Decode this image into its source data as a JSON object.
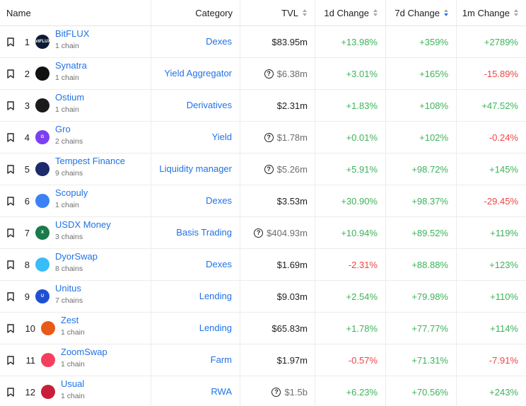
{
  "columns": {
    "name": "Name",
    "category": "Category",
    "tvl": "TVL",
    "change_1d": "1d Change",
    "change_7d": "7d Change",
    "change_1m": "1m Change"
  },
  "rows": [
    {
      "rank": "1",
      "name": "BitFLUX",
      "chains": "1 chain",
      "logo_text": "bitFLUX",
      "logo_color": "#0b1a33",
      "category": "Dexes",
      "tvl": "$83.95m",
      "tvl_help": false,
      "d1": "+13.98%",
      "d7": "+359%",
      "m1": "+2789%",
      "d1_dir": "pos",
      "d7_dir": "pos",
      "m1_dir": "pos"
    },
    {
      "rank": "2",
      "name": "Synatra",
      "chains": "1 chain",
      "logo_text": "",
      "logo_color": "#111111",
      "category": "Yield Aggregator",
      "tvl": "$6.38m",
      "tvl_help": true,
      "d1": "+3.01%",
      "d7": "+165%",
      "m1": "-15.89%",
      "d1_dir": "pos",
      "d7_dir": "pos",
      "m1_dir": "neg"
    },
    {
      "rank": "3",
      "name": "Ostium",
      "chains": "1 chain",
      "logo_text": "",
      "logo_color": "#1b1b1b",
      "category": "Derivatives",
      "tvl": "$2.31m",
      "tvl_help": false,
      "d1": "+1.83%",
      "d7": "+108%",
      "m1": "+47.52%",
      "d1_dir": "pos",
      "d7_dir": "pos",
      "m1_dir": "pos"
    },
    {
      "rank": "4",
      "name": "Gro",
      "chains": "2 chains",
      "logo_text": "G",
      "logo_color": "#7b3ff2",
      "category": "Yield",
      "tvl": "$1.78m",
      "tvl_help": true,
      "d1": "+0.01%",
      "d7": "+102%",
      "m1": "-0.24%",
      "d1_dir": "pos",
      "d7_dir": "pos",
      "m1_dir": "neg"
    },
    {
      "rank": "5",
      "name": "Tempest Finance",
      "chains": "9 chains",
      "logo_text": "",
      "logo_color": "#1d2a6b",
      "category": "Liquidity manager",
      "tvl": "$5.26m",
      "tvl_help": true,
      "d1": "+5.91%",
      "d7": "+98.72%",
      "m1": "+145%",
      "d1_dir": "pos",
      "d7_dir": "pos",
      "m1_dir": "pos"
    },
    {
      "rank": "6",
      "name": "Scopuly",
      "chains": "1 chain",
      "logo_text": "",
      "logo_color": "#3b82f6",
      "category": "Dexes",
      "tvl": "$3.53m",
      "tvl_help": false,
      "d1": "+30.90%",
      "d7": "+98.37%",
      "m1": "-29.45%",
      "d1_dir": "pos",
      "d7_dir": "pos",
      "m1_dir": "neg"
    },
    {
      "rank": "7",
      "name": "USDX Money",
      "chains": "3 chains",
      "logo_text": "X",
      "logo_color": "#1a7a4a",
      "category": "Basis Trading",
      "tvl": "$404.93m",
      "tvl_help": true,
      "d1": "+10.94%",
      "d7": "+89.52%",
      "m1": "+119%",
      "d1_dir": "pos",
      "d7_dir": "pos",
      "m1_dir": "pos"
    },
    {
      "rank": "8",
      "name": "DyorSwap",
      "chains": "8 chains",
      "logo_text": "",
      "logo_color": "#38bdf8",
      "category": "Dexes",
      "tvl": "$1.69m",
      "tvl_help": false,
      "d1": "-2.31%",
      "d7": "+88.88%",
      "m1": "+123%",
      "d1_dir": "neg",
      "d7_dir": "pos",
      "m1_dir": "pos"
    },
    {
      "rank": "9",
      "name": "Unitus",
      "chains": "7 chains",
      "logo_text": "U",
      "logo_color": "#1f4fd1",
      "category": "Lending",
      "tvl": "$9.03m",
      "tvl_help": false,
      "d1": "+2.54%",
      "d7": "+79.98%",
      "m1": "+110%",
      "d1_dir": "pos",
      "d7_dir": "pos",
      "m1_dir": "pos"
    },
    {
      "rank": "10",
      "name": "Zest",
      "chains": "1 chain",
      "logo_text": "",
      "logo_color": "#e8591a",
      "category": "Lending",
      "tvl": "$65.83m",
      "tvl_help": false,
      "d1": "+1.78%",
      "d7": "+77.77%",
      "m1": "+114%",
      "d1_dir": "pos",
      "d7_dir": "pos",
      "m1_dir": "pos"
    },
    {
      "rank": "11",
      "name": "ZoomSwap",
      "chains": "1 chain",
      "logo_text": "",
      "logo_color": "#f43f5e",
      "category": "Farm",
      "tvl": "$1.97m",
      "tvl_help": false,
      "d1": "-0.57%",
      "d7": "+71.31%",
      "m1": "-7.91%",
      "d1_dir": "neg",
      "d7_dir": "pos",
      "m1_dir": "neg"
    },
    {
      "rank": "12",
      "name": "Usual",
      "chains": "1 chain",
      "logo_text": "",
      "logo_color": "#c81e3a",
      "category": "RWA",
      "tvl": "$1.5b",
      "tvl_help": true,
      "d1": "+6.23%",
      "d7": "+70.56%",
      "m1": "+243%",
      "d1_dir": "pos",
      "d7_dir": "pos",
      "m1_dir": "pos"
    }
  ],
  "sort": {
    "active_column": "change_7d",
    "direction": "descending"
  },
  "colors": {
    "link": "#2172e5",
    "positive": "#3cb35a",
    "negative": "#ef4444"
  }
}
